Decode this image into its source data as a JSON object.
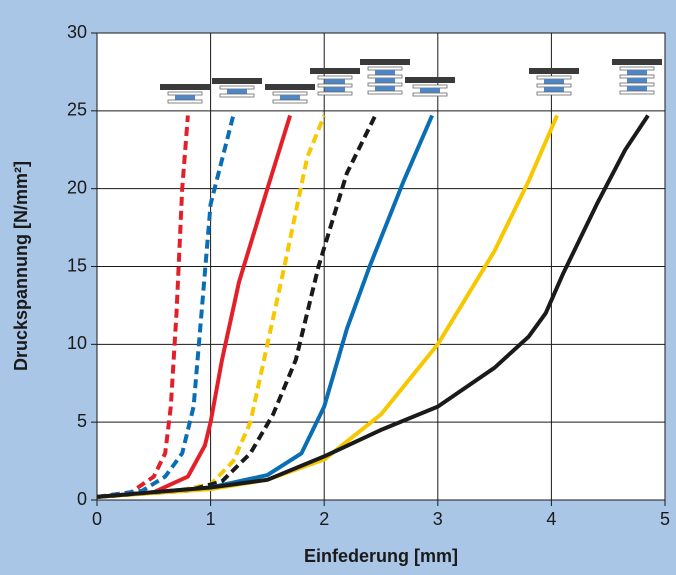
{
  "chart_data": {
    "type": "line",
    "x_label": "Einfederung [mm]",
    "y_label": "Druckspannung [N/mm²]",
    "xlim": [
      0,
      5
    ],
    "xticks": [
      0,
      1,
      2,
      3,
      4,
      5
    ],
    "ylim": [
      0,
      30
    ],
    "yticks": [
      0,
      5,
      10,
      15,
      20,
      25,
      30
    ],
    "grid": true,
    "series": [
      {
        "color": "#e3202a",
        "dashed": true,
        "x": [
          0,
          0.3,
          0.5,
          0.6,
          0.65,
          0.7,
          0.75,
          0.8
        ],
        "values": [
          0.2,
          0.5,
          1.5,
          3,
          6,
          12,
          20,
          24.7
        ]
      },
      {
        "color": "#0a6eb4",
        "dashed": true,
        "x": [
          0,
          0.4,
          0.6,
          0.75,
          0.85,
          0.92,
          1.0,
          1.2
        ],
        "values": [
          0.2,
          0.6,
          1.5,
          3,
          6,
          12,
          19,
          24.7
        ]
      },
      {
        "color": "#e3202a",
        "dashed": false,
        "x": [
          0,
          0.5,
          0.8,
          0.95,
          1.0,
          1.1,
          1.25,
          1.5,
          1.7
        ],
        "values": [
          0.2,
          0.5,
          1.5,
          3.5,
          5,
          9,
          14,
          20,
          24.7
        ]
      },
      {
        "color": "#f7c800",
        "dashed": true,
        "x": [
          0,
          0.7,
          1.0,
          1.2,
          1.35,
          1.5,
          1.65,
          1.85,
          2.0
        ],
        "values": [
          0.2,
          0.6,
          1,
          2.5,
          5,
          10,
          15,
          22,
          24.7
        ]
      },
      {
        "color": "#1a1a1a",
        "dashed": true,
        "x": [
          0,
          0.8,
          1.1,
          1.35,
          1.55,
          1.75,
          1.95,
          2.2,
          2.45
        ],
        "values": [
          0.2,
          0.6,
          1.2,
          3,
          5.5,
          9,
          15,
          21,
          24.7
        ]
      },
      {
        "color": "#0a6eb4",
        "dashed": false,
        "x": [
          0,
          1,
          1.5,
          1.8,
          2.0,
          2.2,
          2.4,
          2.7,
          2.95
        ],
        "values": [
          0.2,
          0.8,
          1.6,
          3,
          6,
          11,
          15,
          20.5,
          24.7
        ]
      },
      {
        "color": "#f7c800",
        "dashed": false,
        "x": [
          0,
          1,
          1.5,
          2,
          2.5,
          3,
          3.5,
          3.8,
          4.05
        ],
        "values": [
          0.2,
          0.7,
          1.3,
          2.6,
          5.5,
          10,
          16,
          20.5,
          24.7
        ]
      },
      {
        "color": "#1a1a1a",
        "dashed": false,
        "x": [
          0,
          1,
          1.5,
          2,
          2.5,
          3,
          3.5,
          3.8,
          3.95,
          4.1,
          4.4,
          4.65,
          4.85
        ],
        "values": [
          0.2,
          0.8,
          1.3,
          2.8,
          4.5,
          6,
          8.5,
          10.5,
          12,
          14.5,
          19,
          22.5,
          24.7
        ]
      }
    ]
  }
}
